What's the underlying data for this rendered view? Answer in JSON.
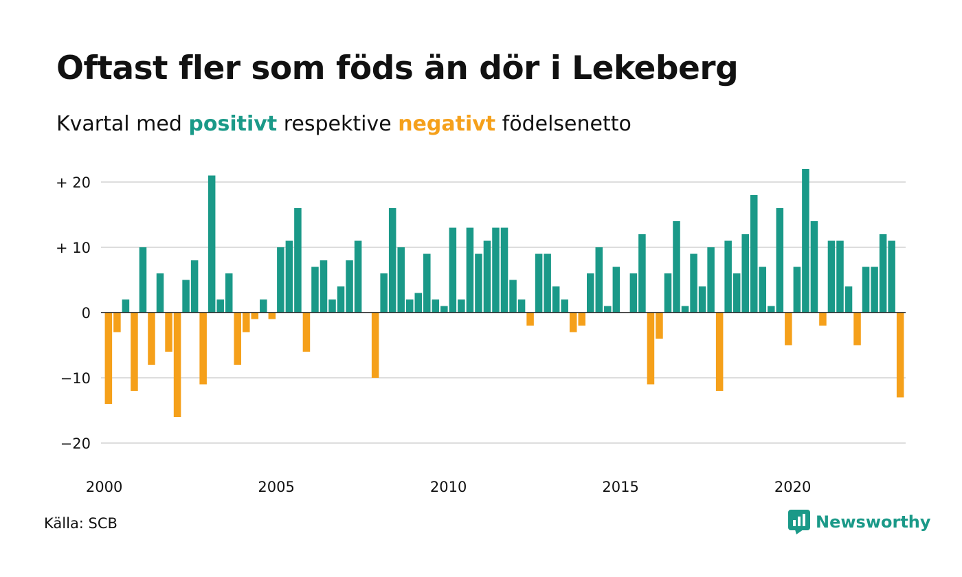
{
  "title": "Oftast fler som föds än dör i Lekeberg",
  "subtitle": {
    "before": "Kvartal med ",
    "positive": "positivt",
    "middle": " respektive ",
    "negative": "negativt",
    "after": " födelsenetto"
  },
  "source": "Källa: SCB",
  "brand": {
    "name": "Newsworthy",
    "icon": "newsworthy-logo-icon"
  },
  "colors": {
    "positive": "#1a9988",
    "negative": "#f5a01a",
    "grid": "#dddddd",
    "text": "#111111"
  },
  "chart_data": {
    "type": "bar",
    "start": "2000-Q1",
    "x_ticks": [
      {
        "year": 2000,
        "label": "2000"
      },
      {
        "year": 2005,
        "label": "2005"
      },
      {
        "year": 2010,
        "label": "2010"
      },
      {
        "year": 2015,
        "label": "2015"
      },
      {
        "year": 2020,
        "label": "2020"
      }
    ],
    "y_ticks": [
      {
        "value": 20,
        "label": "+ 20"
      },
      {
        "value": 10,
        "label": "+ 10"
      },
      {
        "value": 0,
        "label": "0"
      },
      {
        "value": -10,
        "label": "−10"
      },
      {
        "value": -20,
        "label": "−20"
      }
    ],
    "ylim": [
      -20,
      20
    ],
    "grid": true,
    "values": [
      -14,
      -3,
      2,
      -12,
      10,
      -8,
      6,
      -6,
      -16,
      5,
      8,
      -11,
      21,
      2,
      6,
      -8,
      -3,
      -1,
      2,
      -1,
      10,
      11,
      16,
      -6,
      7,
      8,
      2,
      4,
      8,
      11,
      0,
      -10,
      6,
      16,
      10,
      2,
      3,
      9,
      2,
      1,
      13,
      2,
      13,
      9,
      11,
      13,
      13,
      5,
      2,
      -2,
      9,
      9,
      4,
      2,
      -3,
      -2,
      6,
      10,
      1,
      7,
      0,
      6,
      12,
      -11,
      -4,
      6,
      14,
      1,
      9,
      4,
      10,
      -12,
      11,
      6,
      12,
      18,
      7,
      1,
      16,
      -5,
      7,
      22,
      14,
      -2,
      11,
      11,
      4,
      -5,
      7,
      7,
      12,
      11,
      -13
    ]
  }
}
